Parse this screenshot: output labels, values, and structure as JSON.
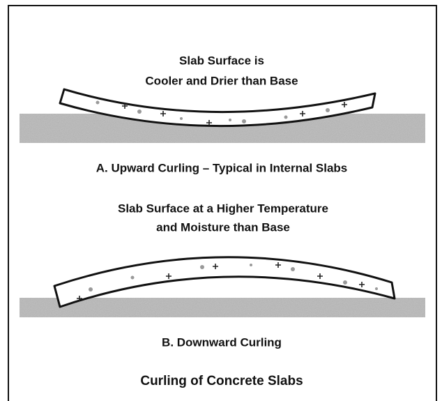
{
  "panels": [
    {
      "label_lines": [
        "Slab Surface is",
        "Cooler and Drier than Base"
      ],
      "caption": "A. Upward Curling – Typical in Internal Slabs"
    },
    {
      "label_lines": [
        "Slab Surface at a Higher Temperature",
        "and Moisture than Base"
      ],
      "caption": "B. Downward Curling"
    }
  ],
  "title": "Curling of Concrete Slabs"
}
